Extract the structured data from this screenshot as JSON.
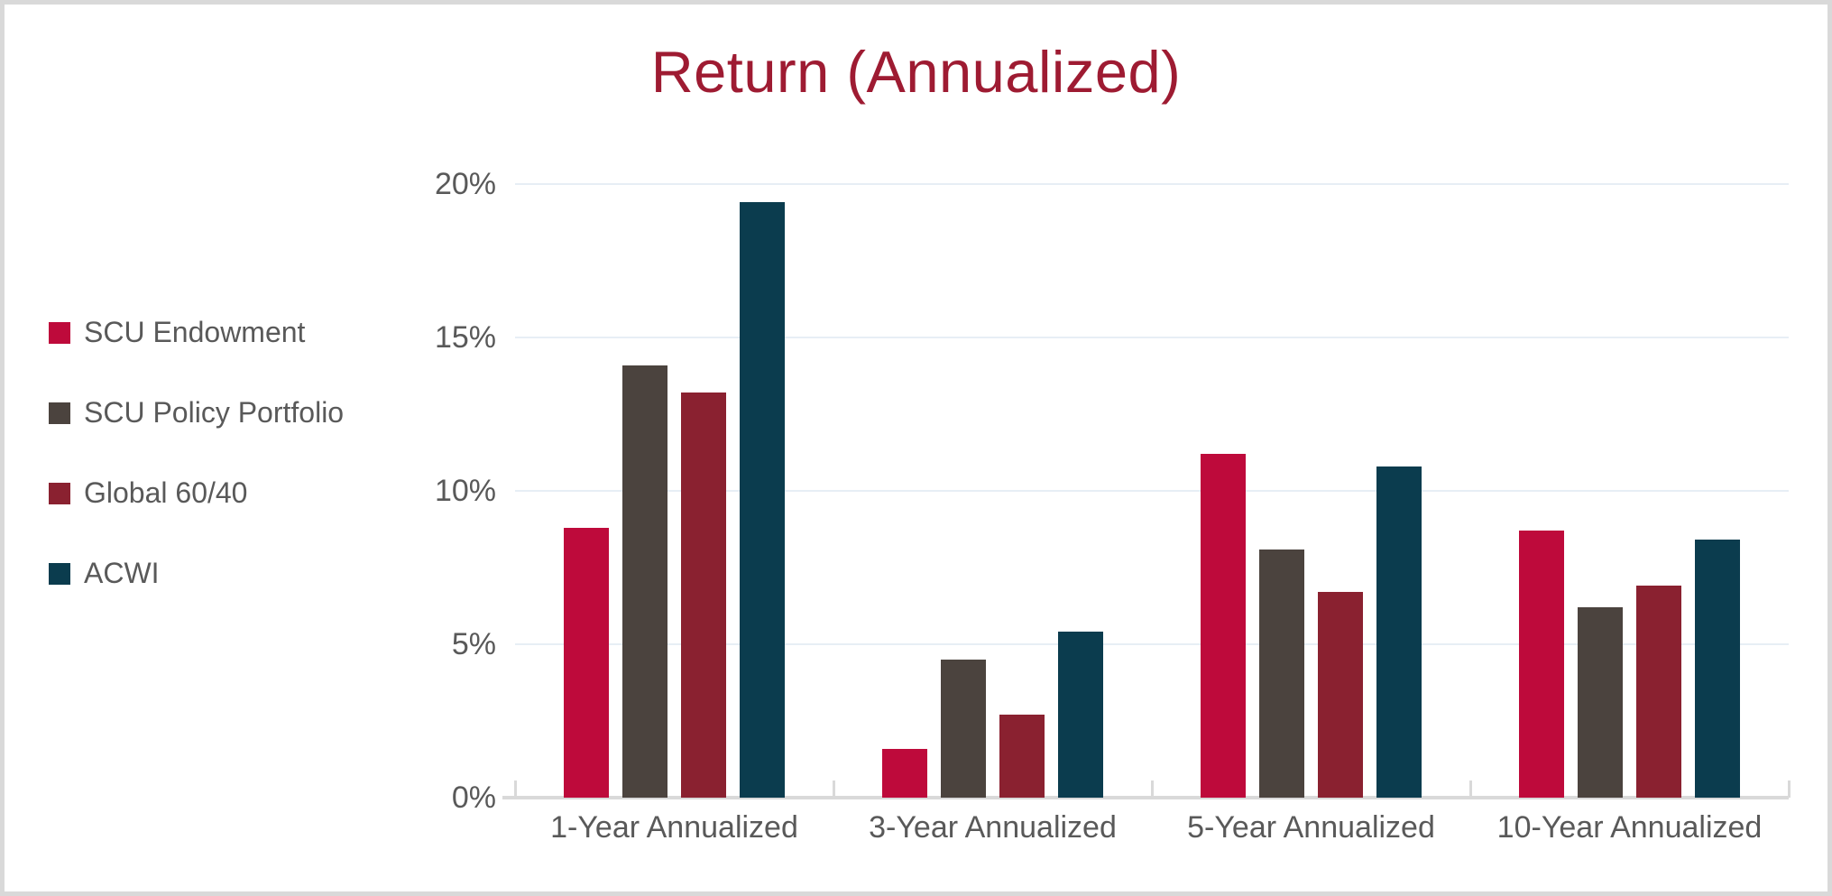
{
  "chart_data": {
    "type": "bar",
    "title": "Return (Annualized)",
    "categories": [
      "1-Year Annualized",
      "3-Year Annualized",
      "5-Year Annualized",
      "10-Year Annualized"
    ],
    "series": [
      {
        "name": "SCU Endowment",
        "color": "#BE0A3B",
        "values": [
          8.8,
          1.6,
          11.2,
          8.7
        ]
      },
      {
        "name": "SCU Policy Portfolio",
        "color": "#4B433E",
        "values": [
          14.1,
          4.5,
          8.1,
          6.2
        ]
      },
      {
        "name": "Global 60/40",
        "color": "#8A2130",
        "values": [
          13.2,
          2.7,
          6.7,
          6.9
        ]
      },
      {
        "name": "ACWI",
        "color": "#0B3C4E",
        "values": [
          19.4,
          5.4,
          10.8,
          8.4
        ]
      }
    ],
    "ylim": [
      0,
      20
    ],
    "y_ticks": [
      {
        "label": "20%",
        "value": 20
      },
      {
        "label": "15%",
        "value": 15
      },
      {
        "label": "10%",
        "value": 10
      },
      {
        "label": "5%",
        "value": 5
      },
      {
        "label": "0%",
        "value": 0
      }
    ],
    "xlabel": "",
    "ylabel": "",
    "grid": true,
    "legend_position": "left"
  },
  "styles": {
    "title_color": "#9E1B32",
    "text_color": "#595959",
    "gridline_color": "#E7EEF5",
    "axis_color": "#D9D9D9",
    "border_color": "#D9D9D9",
    "background": "#FFFFFF"
  }
}
